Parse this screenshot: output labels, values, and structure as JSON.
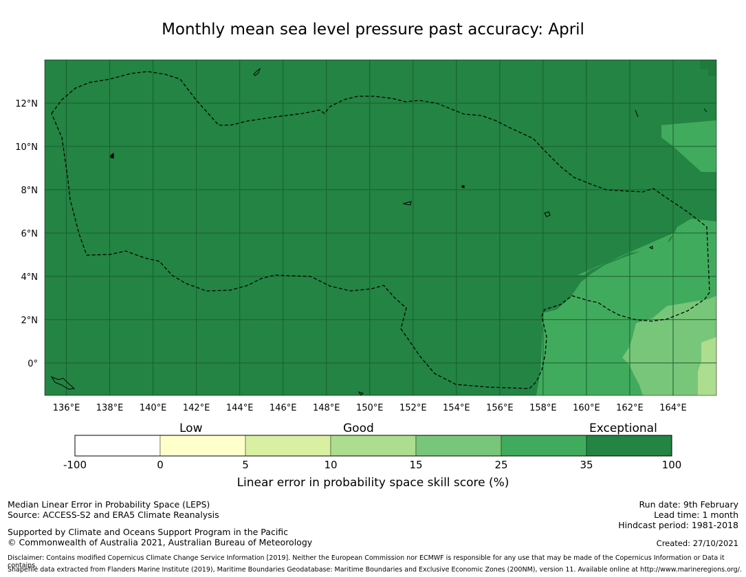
{
  "title": "Monthly mean sea level pressure past accuracy: April",
  "map": {
    "lon_ticks": [
      "136°E",
      "138°E",
      "140°E",
      "142°E",
      "144°E",
      "146°E",
      "148°E",
      "150°E",
      "152°E",
      "154°E",
      "156°E",
      "158°E",
      "160°E",
      "162°E",
      "164°E"
    ],
    "lat_ticks": [
      "12°N",
      "10°N",
      "8°N",
      "6°N",
      "4°N",
      "2°N",
      "0°"
    ],
    "lon_values": [
      136,
      138,
      140,
      142,
      144,
      146,
      148,
      150,
      152,
      154,
      156,
      158,
      160,
      162,
      164
    ],
    "lat_values": [
      12,
      10,
      8,
      6,
      4,
      2,
      0
    ],
    "lon_range": [
      135,
      166
    ],
    "lat_range": [
      -1.5,
      14
    ],
    "eez_boundary_style": "dashed",
    "colors": {
      "exceptional": "#238443",
      "high": "#41ab5d",
      "mid": "#78c679",
      "good": "#addd8e",
      "low": "#d9f0a3",
      "very_low": "#ffffcc",
      "none": "#ffffff"
    }
  },
  "colorbar": {
    "categories": [
      {
        "label": "Low"
      },
      {
        "label": "Good"
      },
      {
        "label": "Exceptional"
      }
    ],
    "bins": [
      {
        "from": "-100",
        "to": "0",
        "color": "#ffffff"
      },
      {
        "from": "0",
        "to": "5",
        "color": "#ffffcc"
      },
      {
        "from": "5",
        "to": "10",
        "color": "#d9f0a3"
      },
      {
        "from": "10",
        "to": "15",
        "color": "#addd8e"
      },
      {
        "from": "15",
        "to": "25",
        "color": "#78c679"
      },
      {
        "from": "25",
        "to": "35",
        "color": "#41ab5d"
      },
      {
        "from": "35",
        "to": "100",
        "color": "#238443"
      }
    ],
    "ticks": [
      "-100",
      "0",
      "5",
      "10",
      "15",
      "25",
      "35",
      "100"
    ],
    "label": "Linear error in probability space skill score (%)"
  },
  "footer": {
    "left1": "Median Linear Error in Probability Space (LEPS)",
    "left2": "Source: ACCESS-S2 and ERA5 Climate Reanalysis",
    "left3": "Supported by Climate and Oceans Support Program in the Pacific",
    "left4": "© Commonwealth of Australia 2021, Australian Bureau of Meteorology",
    "run_date": "Run date: 9th February",
    "lead_time": "Lead time: 1 month",
    "hindcast": "Hindcast period: 1981-2018",
    "created": "Created: 27/10/2021",
    "disclaimer1": "Disclaimer: Contains modified Copernicus Climate Change Service Information [2019]. Neither the European Commission nor ECMWF is responsible for any use that may be made of the Copernicus Information or Data it contains.",
    "disclaimer2": "Shapefile data extracted from Flanders Marine Institute (2019), Maritime Boundaries Geodatabase: Maritime Boundaries and Exclusive Economic Zones (200NM), version 11. Available online at http://www.marineregions.org/."
  }
}
